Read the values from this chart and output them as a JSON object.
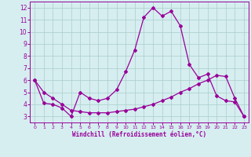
{
  "xlabel": "Windchill (Refroidissement éolien,°C)",
  "ylabel": "",
  "bg_color": "#d6eef0",
  "line_color": "#990099",
  "grid_color": "#aacccc",
  "x_upper": [
    0,
    1,
    2,
    3,
    4,
    5,
    6,
    7,
    8,
    9,
    10,
    11,
    12,
    13,
    14,
    15,
    16,
    17,
    18,
    19,
    20,
    21,
    22,
    23
  ],
  "y_upper": [
    6.0,
    4.1,
    4.0,
    3.7,
    3.0,
    5.0,
    4.5,
    4.3,
    4.5,
    5.2,
    6.7,
    8.5,
    11.2,
    12.0,
    11.3,
    11.7,
    10.5,
    7.3,
    6.2,
    6.5,
    4.7,
    4.3,
    4.2,
    3.0
  ],
  "x_lower": [
    0,
    1,
    2,
    3,
    4,
    5,
    6,
    7,
    8,
    9,
    10,
    11,
    12,
    13,
    14,
    15,
    16,
    17,
    18,
    19,
    20,
    21,
    22,
    23
  ],
  "y_lower": [
    6.0,
    5.0,
    4.5,
    4.0,
    3.5,
    3.4,
    3.3,
    3.3,
    3.3,
    3.4,
    3.5,
    3.6,
    3.8,
    4.0,
    4.3,
    4.6,
    5.0,
    5.3,
    5.7,
    6.0,
    6.4,
    6.3,
    4.5,
    3.0
  ],
  "xlim": [
    -0.5,
    23.5
  ],
  "ylim": [
    2.5,
    12.5
  ],
  "yticks": [
    3,
    4,
    5,
    6,
    7,
    8,
    9,
    10,
    11,
    12
  ],
  "xticks": [
    0,
    1,
    2,
    3,
    4,
    5,
    6,
    7,
    8,
    9,
    10,
    11,
    12,
    13,
    14,
    15,
    16,
    17,
    18,
    19,
    20,
    21,
    22,
    23
  ]
}
